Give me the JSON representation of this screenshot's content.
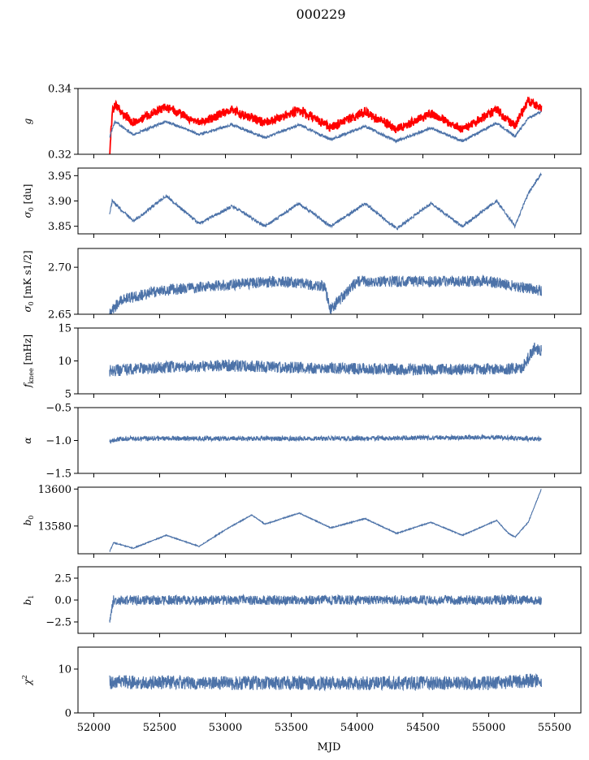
{
  "figure_title": "000229",
  "colors": {
    "series": "#4c72a8",
    "highlight": "#ff0000",
    "axes": "#000000"
  },
  "chart_data": {
    "type": "line",
    "title": "000229",
    "xlabel": "MJD",
    "xlim": [
      51880,
      55700
    ],
    "xticks": [
      52000,
      52500,
      53000,
      53500,
      54000,
      54500,
      55000,
      55500
    ],
    "x_start": 52120,
    "x_end": 55400,
    "grid": false,
    "panels": [
      {
        "id": "g",
        "ylabel": "g",
        "ylabel_unit": "",
        "ylim": [
          0.32,
          0.34
        ],
        "yticks": [
          0.32,
          0.34
        ],
        "ytick_labels": [
          "0.32",
          "0.34"
        ],
        "series": [
          {
            "color": "red",
            "knots": [
              [
                52120,
                0.32
              ],
              [
                52140,
                0.333
              ],
              [
                52160,
                0.335
              ],
              [
                52300,
                0.3295
              ],
              [
                52550,
                0.3345
              ],
              [
                52800,
                0.3295
              ],
              [
                53050,
                0.3335
              ],
              [
                53300,
                0.3295
              ],
              [
                53560,
                0.3335
              ],
              [
                53800,
                0.328
              ],
              [
                54060,
                0.333
              ],
              [
                54300,
                0.3275
              ],
              [
                54560,
                0.3325
              ],
              [
                54800,
                0.3275
              ],
              [
                55060,
                0.3335
              ],
              [
                55200,
                0.3285
              ],
              [
                55300,
                0.3365
              ],
              [
                55400,
                0.3335
              ]
            ]
          },
          {
            "color": "blue",
            "knots": [
              [
                52120,
                0.325
              ],
              [
                52160,
                0.33
              ],
              [
                52300,
                0.326
              ],
              [
                52550,
                0.33
              ],
              [
                52800,
                0.326
              ],
              [
                53050,
                0.329
              ],
              [
                53300,
                0.325
              ],
              [
                53560,
                0.329
              ],
              [
                53800,
                0.3245
              ],
              [
                54060,
                0.3285
              ],
              [
                54300,
                0.324
              ],
              [
                54560,
                0.328
              ],
              [
                54800,
                0.324
              ],
              [
                55060,
                0.3295
              ],
              [
                55200,
                0.3255
              ],
              [
                55300,
                0.331
              ],
              [
                55400,
                0.333
              ]
            ]
          }
        ]
      },
      {
        "id": "sigma0_du",
        "ylabel": "σ0",
        "ylabel_unit": "[du]",
        "ylim": [
          3.835,
          3.965
        ],
        "yticks": [
          3.85,
          3.9,
          3.95
        ],
        "ytick_labels": [
          "3.85",
          "3.90",
          "3.95"
        ],
        "series": [
          {
            "color": "blue",
            "knots": [
              [
                52120,
                3.875
              ],
              [
                52140,
                3.9
              ],
              [
                52300,
                3.86
              ],
              [
                52550,
                3.91
              ],
              [
                52800,
                3.855
              ],
              [
                53050,
                3.89
              ],
              [
                53300,
                3.85
              ],
              [
                53560,
                3.895
              ],
              [
                53800,
                3.85
              ],
              [
                54060,
                3.895
              ],
              [
                54300,
                3.845
              ],
              [
                54560,
                3.895
              ],
              [
                54800,
                3.85
              ],
              [
                55060,
                3.9
              ],
              [
                55200,
                3.85
              ],
              [
                55300,
                3.915
              ],
              [
                55400,
                3.955
              ]
            ]
          }
        ]
      },
      {
        "id": "sigma0_mk",
        "ylabel": "σ0",
        "ylabel_unit": "[mK s1/2]",
        "ylim": [
          2.65,
          2.72
        ],
        "yticks": [
          2.65,
          2.7
        ],
        "ytick_labels": [
          "2.65",
          "2.70"
        ],
        "series": [
          {
            "color": "blue",
            "knots": [
              [
                52120,
                2.65
              ],
              [
                52200,
                2.665
              ],
              [
                52500,
                2.675
              ],
              [
                52900,
                2.68
              ],
              [
                53400,
                2.685
              ],
              [
                53750,
                2.68
              ],
              [
                53800,
                2.655
              ],
              [
                54000,
                2.685
              ],
              [
                54500,
                2.685
              ],
              [
                55000,
                2.685
              ],
              [
                55400,
                2.675
              ]
            ]
          }
        ]
      },
      {
        "id": "fknee",
        "ylabel": "f",
        "ylabel_sub": "knee",
        "ylabel_unit": "[mHz]",
        "ylim": [
          5,
          15
        ],
        "yticks": [
          5,
          10,
          15
        ],
        "ytick_labels": [
          "5",
          "10",
          "15"
        ],
        "series": [
          {
            "color": "blue",
            "knots": [
              [
                52120,
                8.5
              ],
              [
                52500,
                9.0
              ],
              [
                53000,
                9.3
              ],
              [
                53500,
                9.0
              ],
              [
                54000,
                8.8
              ],
              [
                54500,
                8.7
              ],
              [
                55000,
                8.8
              ],
              [
                55250,
                8.8
              ],
              [
                55350,
                12.0
              ],
              [
                55400,
                11.5
              ]
            ]
          }
        ]
      },
      {
        "id": "alpha",
        "ylabel": "α",
        "ylabel_unit": "",
        "ylim": [
          -1.5,
          -0.5
        ],
        "yticks": [
          -1.5,
          -1.0,
          -0.5
        ],
        "ytick_labels": [
          "−1.5",
          "−1.0",
          "−0.5"
        ],
        "series": [
          {
            "color": "blue",
            "knots": [
              [
                52120,
                -1.02
              ],
              [
                52200,
                -0.97
              ],
              [
                53000,
                -0.97
              ],
              [
                54000,
                -0.97
              ],
              [
                55000,
                -0.95
              ],
              [
                55400,
                -0.98
              ]
            ]
          }
        ]
      },
      {
        "id": "b0",
        "ylabel": "b0",
        "ylabel_unit": "",
        "ylim": [
          13565,
          13601
        ],
        "yticks": [
          13580,
          13600
        ],
        "ytick_labels": [
          "13580",
          "13600"
        ],
        "series": [
          {
            "color": "blue",
            "knots": [
              [
                52120,
                13566
              ],
              [
                52150,
                13571
              ],
              [
                52300,
                13568
              ],
              [
                52550,
                13575
              ],
              [
                52800,
                13569
              ],
              [
                53000,
                13578
              ],
              [
                53200,
                13586
              ],
              [
                53300,
                13581
              ],
              [
                53560,
                13587
              ],
              [
                53800,
                13579
              ],
              [
                54060,
                13584
              ],
              [
                54300,
                13576
              ],
              [
                54560,
                13582
              ],
              [
                54800,
                13575
              ],
              [
                55060,
                13583
              ],
              [
                55150,
                13576
              ],
              [
                55200,
                13574
              ],
              [
                55300,
                13582
              ],
              [
                55400,
                13600
              ]
            ]
          }
        ]
      },
      {
        "id": "b1",
        "ylabel": "b1",
        "ylabel_unit": "",
        "ylim": [
          -3.8,
          3.8
        ],
        "yticks": [
          -2.5,
          0.0,
          2.5
        ],
        "ytick_labels": [
          "−2.5",
          "0.0",
          "2.5"
        ],
        "series": [
          {
            "color": "blue",
            "knots": [
              [
                52120,
                -2.5
              ],
              [
                52150,
                0.0
              ],
              [
                55400,
                0.0
              ]
            ]
          }
        ]
      },
      {
        "id": "chi2",
        "ylabel": "χ2",
        "ylabel_unit": "",
        "ylim": [
          0,
          15
        ],
        "yticks": [
          0,
          10
        ],
        "ytick_labels": [
          "0",
          "10"
        ],
        "series": [
          {
            "color": "blue",
            "knots": [
              [
                52120,
                7.0
              ],
              [
                52500,
                7.0
              ],
              [
                53000,
                6.8
              ],
              [
                53500,
                6.8
              ],
              [
                54000,
                6.8
              ],
              [
                54500,
                6.8
              ],
              [
                55000,
                6.8
              ],
              [
                55400,
                7.5
              ]
            ]
          }
        ]
      }
    ]
  }
}
